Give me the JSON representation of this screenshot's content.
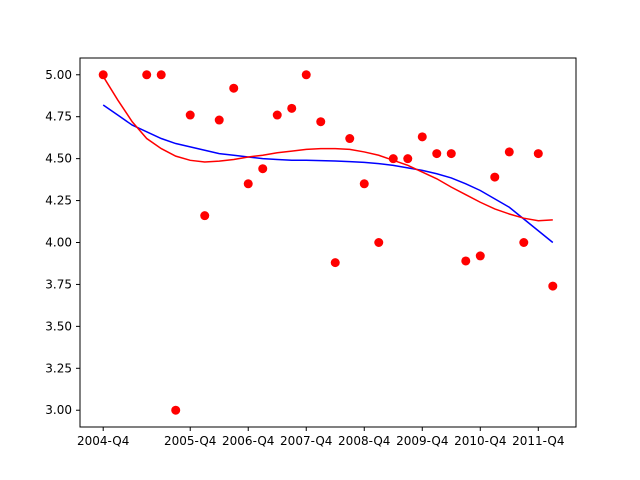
{
  "chart_data": {
    "type": "scatter",
    "title": "",
    "xlabel": "",
    "ylabel": "",
    "x_tick_labels": [
      "2004-Q4",
      "2005-Q4",
      "2006-Q4",
      "2007-Q4",
      "2008-Q4",
      "2009-Q4",
      "2010-Q4",
      "2011-Q4"
    ],
    "x_tick_positions": [
      0,
      6,
      10,
      14,
      18,
      22,
      26,
      30
    ],
    "xlim": [
      -1.6,
      32.6
    ],
    "ylim": [
      2.9,
      5.1
    ],
    "y_ticks": [
      3.0,
      3.25,
      3.5,
      3.75,
      4.0,
      4.25,
      4.5,
      4.75,
      5.0
    ],
    "y_tick_labels": [
      "3.00",
      "3.25",
      "3.50",
      "3.75",
      "4.00",
      "4.25",
      "4.50",
      "4.75",
      "5.00"
    ],
    "grid": false,
    "series": [
      {
        "kind": "scatter",
        "color": "#ff0000",
        "points": [
          [
            0,
            5.0
          ],
          [
            3,
            5.0
          ],
          [
            4,
            5.0
          ],
          [
            5,
            3.0
          ],
          [
            6,
            4.76
          ],
          [
            7,
            4.16
          ],
          [
            8,
            4.73
          ],
          [
            9,
            4.92
          ],
          [
            10,
            4.35
          ],
          [
            11,
            4.44
          ],
          [
            12,
            4.76
          ],
          [
            13,
            4.8
          ],
          [
            14,
            5.0
          ],
          [
            15,
            4.72
          ],
          [
            16,
            3.88
          ],
          [
            17,
            4.62
          ],
          [
            18,
            4.35
          ],
          [
            19,
            4.0
          ],
          [
            20,
            4.5
          ],
          [
            21,
            4.5
          ],
          [
            22,
            4.63
          ],
          [
            23,
            4.53
          ],
          [
            24,
            4.53
          ],
          [
            25,
            3.89
          ],
          [
            26,
            3.92
          ],
          [
            27,
            4.39
          ],
          [
            28,
            4.54
          ],
          [
            29,
            4.0
          ],
          [
            30,
            4.53
          ],
          [
            31,
            3.74
          ]
        ]
      },
      {
        "kind": "line",
        "color": "#0000ff",
        "points": [
          [
            0,
            4.82
          ],
          [
            1,
            4.76
          ],
          [
            2,
            4.7
          ],
          [
            3,
            4.66
          ],
          [
            4,
            4.62
          ],
          [
            5,
            4.59
          ],
          [
            6,
            4.57
          ],
          [
            7,
            4.55
          ],
          [
            8,
            4.53
          ],
          [
            9,
            4.52
          ],
          [
            10,
            4.51
          ],
          [
            11,
            4.5
          ],
          [
            12,
            4.495
          ],
          [
            13,
            4.49
          ],
          [
            14,
            4.49
          ],
          [
            15,
            4.488
          ],
          [
            16,
            4.486
          ],
          [
            17,
            4.482
          ],
          [
            18,
            4.478
          ],
          [
            19,
            4.47
          ],
          [
            20,
            4.46
          ],
          [
            21,
            4.445
          ],
          [
            22,
            4.43
          ],
          [
            23,
            4.41
          ],
          [
            24,
            4.385
          ],
          [
            25,
            4.35
          ],
          [
            26,
            4.31
          ],
          [
            27,
            4.26
          ],
          [
            28,
            4.21
          ],
          [
            29,
            4.14
          ],
          [
            30,
            4.07
          ],
          [
            31,
            4.0
          ]
        ]
      },
      {
        "kind": "line",
        "color": "#ff0000",
        "points": [
          [
            0,
            4.99
          ],
          [
            1,
            4.85
          ],
          [
            2,
            4.72
          ],
          [
            3,
            4.62
          ],
          [
            4,
            4.56
          ],
          [
            5,
            4.515
          ],
          [
            6,
            4.49
          ],
          [
            7,
            4.48
          ],
          [
            8,
            4.485
          ],
          [
            9,
            4.495
          ],
          [
            10,
            4.51
          ],
          [
            11,
            4.52
          ],
          [
            12,
            4.535
          ],
          [
            13,
            4.545
          ],
          [
            14,
            4.555
          ],
          [
            15,
            4.56
          ],
          [
            16,
            4.56
          ],
          [
            17,
            4.555
          ],
          [
            18,
            4.54
          ],
          [
            19,
            4.52
          ],
          [
            20,
            4.49
          ],
          [
            21,
            4.46
          ],
          [
            22,
            4.42
          ],
          [
            23,
            4.38
          ],
          [
            24,
            4.33
          ],
          [
            25,
            4.285
          ],
          [
            26,
            4.24
          ],
          [
            27,
            4.2
          ],
          [
            28,
            4.17
          ],
          [
            29,
            4.145
          ],
          [
            30,
            4.13
          ],
          [
            31,
            4.135
          ]
        ]
      }
    ]
  }
}
